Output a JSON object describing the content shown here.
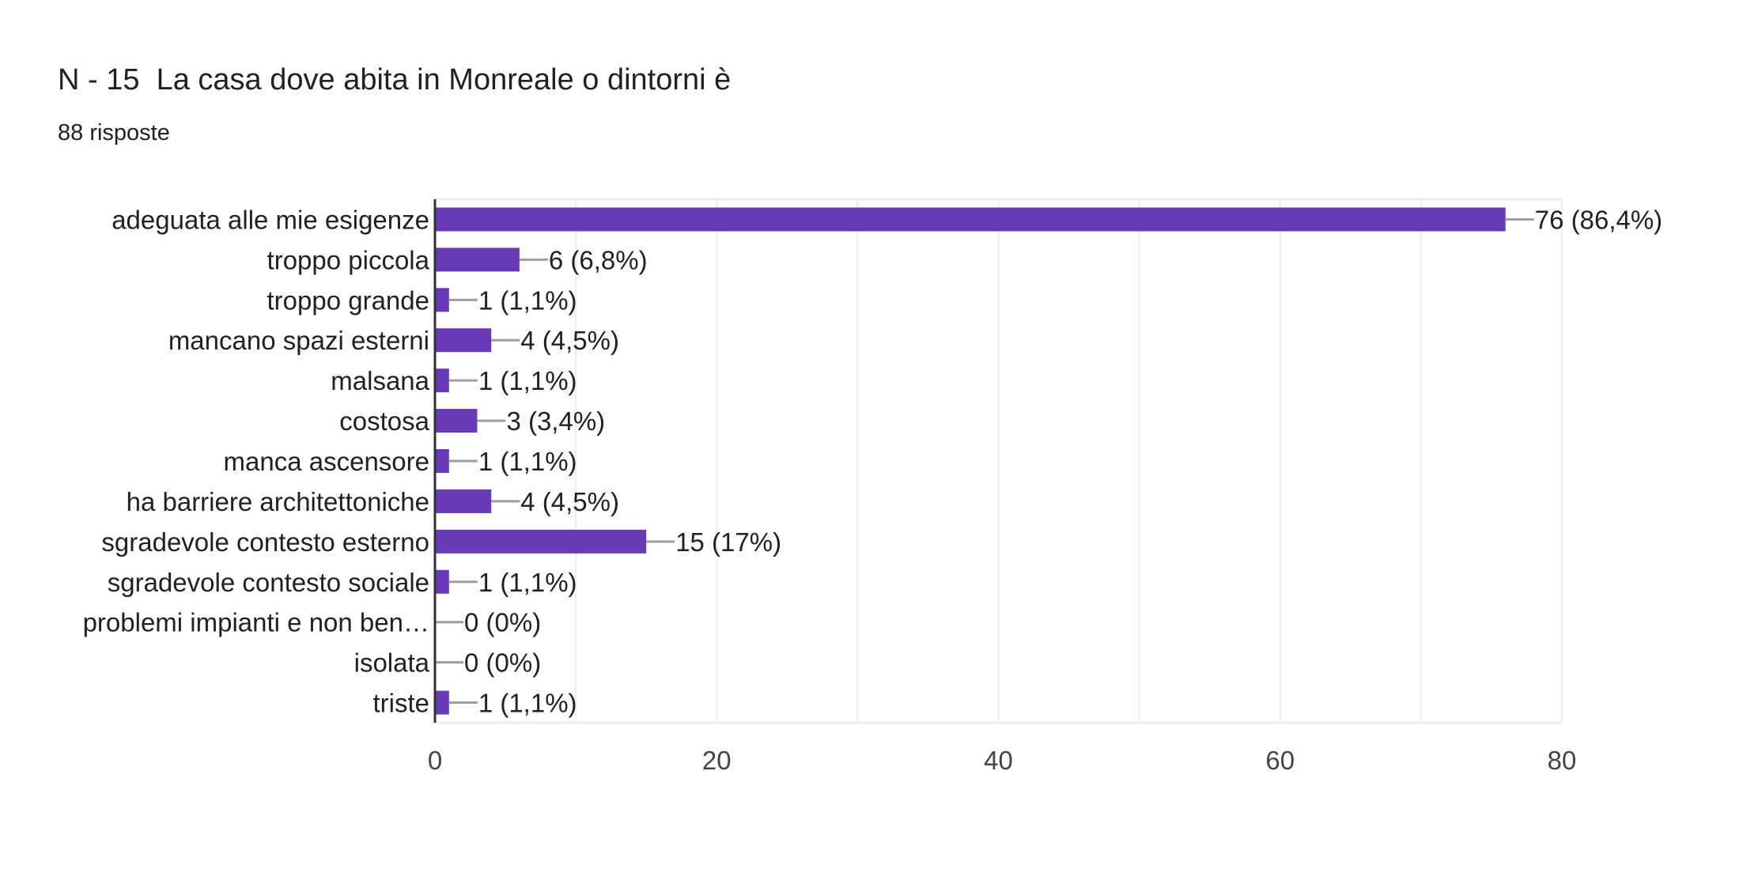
{
  "chart_data": {
    "type": "bar",
    "orientation": "horizontal",
    "title": "N - 15  La casa dove abita in Monreale o dintorni è",
    "subtitle": "88 risposte",
    "categories": [
      "adeguata alle mie esigenze",
      "troppo piccola",
      "troppo grande",
      "mancano spazi esterni",
      "malsana",
      "costosa",
      "manca ascensore",
      "ha barriere architettoniche",
      "sgradevole contesto esterno",
      "sgradevole contesto sociale",
      "problemi impianti e non ben…",
      "isolata",
      "triste"
    ],
    "values": [
      76,
      6,
      1,
      4,
      1,
      3,
      1,
      4,
      15,
      1,
      0,
      0,
      1
    ],
    "data_labels": [
      "76 (86,4%)",
      "6 (6,8%)",
      "1 (1,1%)",
      "4 (4,5%)",
      "1 (1,1%)",
      "3 (3,4%)",
      "1 (1,1%)",
      "4 (4,5%)",
      "15 (17%)",
      "1 (1,1%)",
      "0 (0%)",
      "0 (0%)",
      "1 (1,1%)"
    ],
    "xlim": [
      0,
      80
    ],
    "xticks": [
      0,
      20,
      40,
      60,
      80
    ],
    "minor_gridlines": [
      10,
      30,
      50,
      70
    ],
    "grid": true,
    "legend": "none",
    "xlabel": "",
    "ylabel": "",
    "bar_color": "#673ab7"
  }
}
